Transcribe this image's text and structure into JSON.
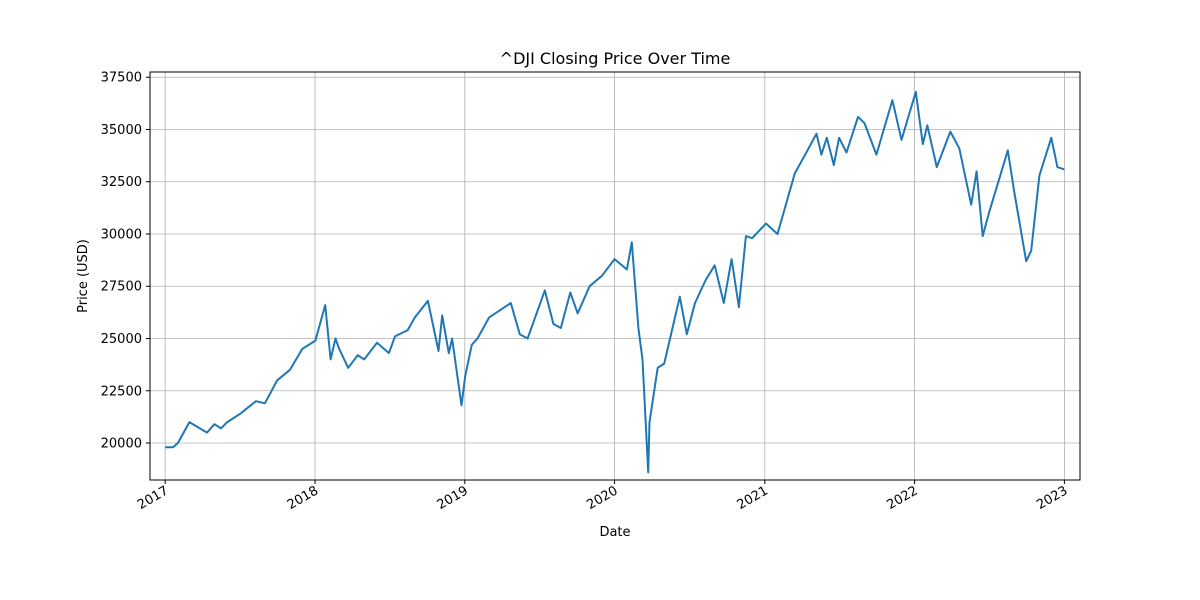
{
  "chart_data": {
    "type": "line",
    "title": "^DJI Closing Price Over Time",
    "xlabel": "Date",
    "ylabel": "Price (USD)",
    "x_tick_labels": [
      "2017",
      "2018",
      "2019",
      "2020",
      "2021",
      "2022",
      "2023"
    ],
    "y_ticks": [
      20000,
      22500,
      25000,
      27500,
      30000,
      32500,
      35000,
      37500
    ],
    "y_tick_labels": [
      "20000",
      "22500",
      "25000",
      "27500",
      "30000",
      "32500",
      "35000",
      "37500"
    ],
    "xlim": [
      "2016-11-25",
      "2023-02-08"
    ],
    "ylim": [
      18230,
      37750
    ],
    "grid": true,
    "line_color": "#1f77b4",
    "series": [
      {
        "x": [
          "2017-01-03",
          "2017-01-20",
          "2017-02-01",
          "2017-03-01",
          "2017-04-13",
          "2017-05-01",
          "2017-05-17",
          "2017-06-01",
          "2017-07-03",
          "2017-08-10",
          "2017-09-01",
          "2017-10-01",
          "2017-11-01",
          "2017-12-01",
          "2018-01-02",
          "2018-01-26",
          "2018-02-08",
          "2018-02-20",
          "2018-03-01",
          "2018-03-23",
          "2018-04-15",
          "2018-05-01",
          "2018-06-01",
          "2018-06-30",
          "2018-07-15",
          "2018-08-15",
          "2018-09-01",
          "2018-10-03",
          "2018-10-29",
          "2018-11-07",
          "2018-11-23",
          "2018-12-01",
          "2018-12-24",
          "2019-01-02",
          "2019-01-18",
          "2019-02-01",
          "2019-03-01",
          "2019-04-23",
          "2019-05-15",
          "2019-06-03",
          "2019-07-15",
          "2019-08-05",
          "2019-08-23",
          "2019-09-15",
          "2019-10-03",
          "2019-11-01",
          "2019-12-01",
          "2020-01-01",
          "2020-01-31",
          "2020-02-12",
          "2020-02-28",
          "2020-03-09",
          "2020-03-23",
          "2020-03-26",
          "2020-04-15",
          "2020-05-01",
          "2020-06-08",
          "2020-06-25",
          "2020-07-15",
          "2020-08-10",
          "2020-09-01",
          "2020-09-23",
          "2020-10-12",
          "2020-10-30",
          "2020-11-16",
          "2020-12-01",
          "2021-01-04",
          "2021-02-01",
          "2021-03-15",
          "2021-04-15",
          "2021-05-07",
          "2021-05-19",
          "2021-06-01",
          "2021-06-18",
          "2021-07-01",
          "2021-07-19",
          "2021-08-16",
          "2021-09-01",
          "2021-09-30",
          "2021-11-08",
          "2021-11-30",
          "2022-01-04",
          "2022-01-21",
          "2022-02-01",
          "2022-02-24",
          "2022-03-29",
          "2022-04-20",
          "2022-05-19",
          "2022-06-01",
          "2022-06-16",
          "2022-07-01",
          "2022-08-16",
          "2022-09-01",
          "2022-09-30",
          "2022-10-12",
          "2022-11-01",
          "2022-11-30",
          "2022-12-15",
          "2022-12-30"
        ],
        "y": [
          19800,
          19800,
          20000,
          21000,
          20500,
          20900,
          20700,
          21000,
          21400,
          22000,
          21900,
          23000,
          23500,
          24500,
          24900,
          26600,
          24000,
          25000,
          24500,
          23600,
          24200,
          24000,
          24800,
          24300,
          25100,
          25400,
          26000,
          26800,
          24400,
          26100,
          24300,
          25000,
          21800,
          23200,
          24700,
          25000,
          26000,
          26700,
          25200,
          25000,
          27300,
          25700,
          25500,
          27200,
          26200,
          27500,
          28000,
          28800,
          28300,
          29600,
          25500,
          24000,
          18600,
          21000,
          23600,
          23800,
          27000,
          25200,
          26700,
          27800,
          28500,
          26700,
          28800,
          26500,
          29900,
          29800,
          30500,
          30000,
          32900,
          34000,
          34800,
          33800,
          34600,
          33300,
          34600,
          33900,
          35600,
          35300,
          33800,
          36400,
          34500,
          36800,
          34300,
          35200,
          33200,
          34900,
          34100,
          31400,
          33000,
          29900,
          31000,
          34000,
          32000,
          28700,
          29200,
          32800,
          34600,
          33200,
          33100
        ]
      }
    ]
  }
}
